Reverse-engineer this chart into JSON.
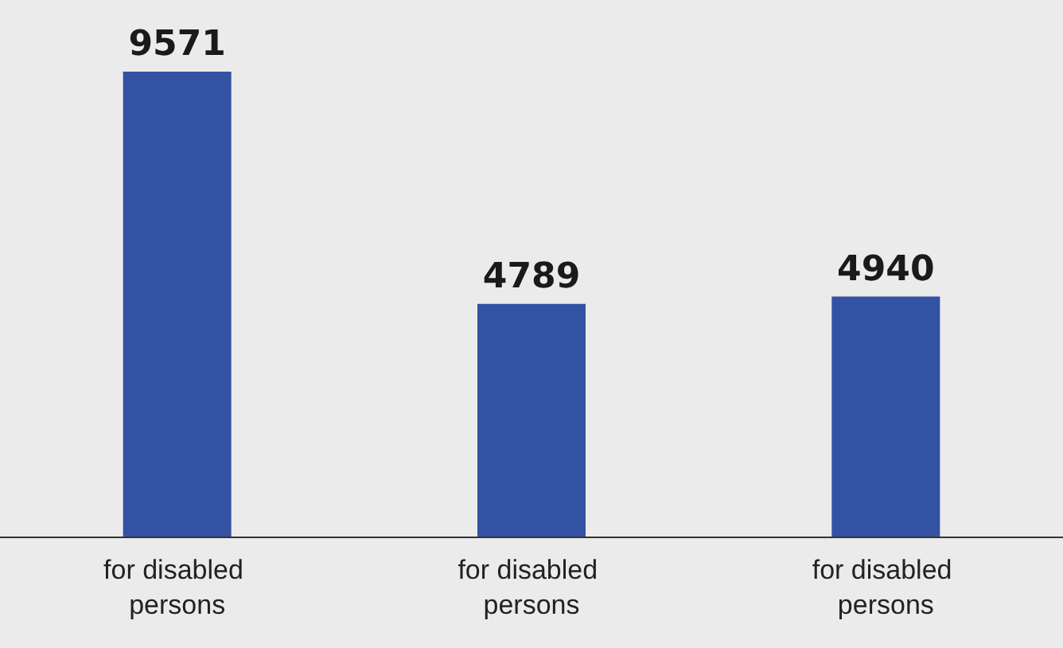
{
  "chart_data": {
    "type": "bar",
    "categories": [
      "for disabled persons",
      "for disabled persons",
      "for disabled persons"
    ],
    "values": [
      9571,
      4789,
      4940
    ],
    "color": "#3352a3",
    "data_labels": true
  }
}
